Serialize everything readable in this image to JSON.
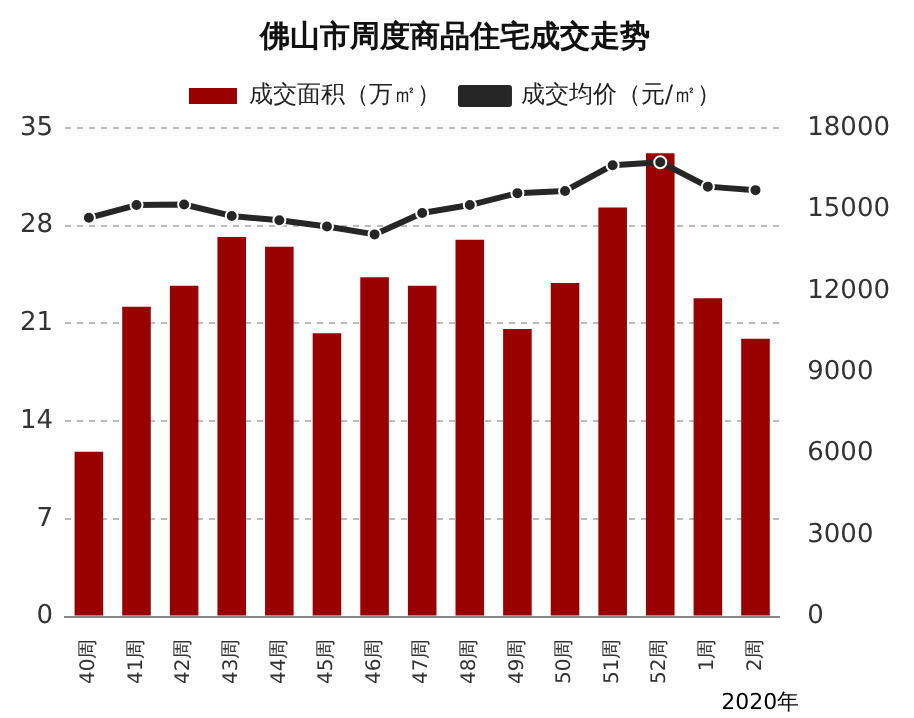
{
  "chart_data": {
    "type": "bar",
    "title": "佛山市周度商品住宅成交走势",
    "categories": [
      "40周",
      "41周",
      "42周",
      "43周",
      "44周",
      "45周",
      "46周",
      "47周",
      "48周",
      "49周",
      "50周",
      "51周",
      "52周",
      "1周",
      "2周"
    ],
    "series": [
      {
        "name": "成交面积（万㎡）",
        "color": "#990000",
        "values": [
          11.8,
          22.2,
          23.7,
          27.2,
          26.5,
          20.3,
          24.3,
          23.7,
          27.0,
          20.6,
          23.9,
          29.3,
          33.2,
          22.8,
          19.9
        ]
      },
      {
        "name": "成交均价（元/㎡）",
        "type": "line",
        "axis": "y2",
        "color": "#262626",
        "values": [
          14690,
          15160,
          15180,
          14760,
          14600,
          14370,
          14080,
          14870,
          15160,
          15600,
          15680,
          16630,
          16740,
          15840,
          15710
        ]
      }
    ],
    "ylim": [
      0,
      35
    ],
    "yticks": [
      0,
      7,
      14,
      21,
      28,
      35
    ],
    "y2lim": [
      0,
      18000
    ],
    "y2ticks": [
      0,
      3000,
      6000,
      9000,
      12000,
      15000,
      18000
    ],
    "grid": "y",
    "legend": "top",
    "marker": "circle",
    "annotations": [
      "2020年"
    ]
  }
}
